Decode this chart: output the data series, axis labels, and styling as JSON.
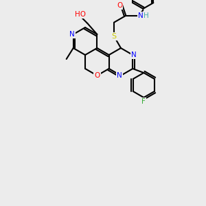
{
  "bg_color": "#ececec",
  "bond_color": "#000000",
  "bond_width": 1.5,
  "atom_colors": {
    "C": "#000000",
    "N": "#0000ff",
    "O": "#ff0000",
    "S": "#cccc00",
    "F": "#33aa33",
    "H": "#44aaaa"
  },
  "font_size": 7.5
}
